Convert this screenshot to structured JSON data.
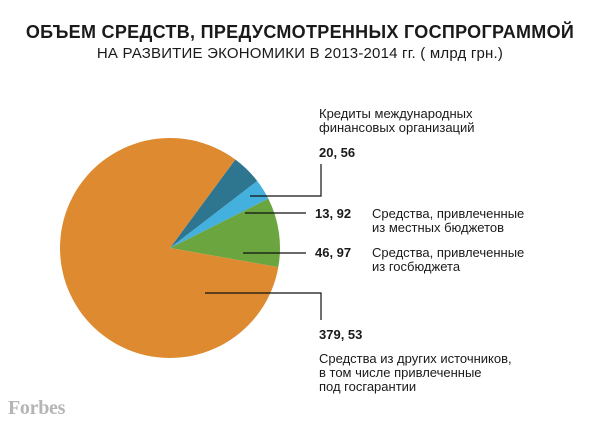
{
  "brand": "Forbes",
  "chart_data": {
    "type": "pie",
    "title": "ОБЪЕМ СРЕДСТВ, ПРЕДУСМОТРЕННЫХ ГОСПРОГРАММОЙ",
    "subtitle": "НА РАЗВИТИЕ ЭКОНОМИКИ В 2013-2014  гг. ( млрд грн.)",
    "slices": [
      {
        "value": 20.56,
        "value_label": "20, 56",
        "label_lines": [
          "Кредиты международных",
          "финансовых организаций"
        ],
        "color": "#2e7590"
      },
      {
        "value": 13.92,
        "value_label": "13, 92",
        "label_lines": [
          "Средства, привлеченные",
          "из местных бюджетов"
        ],
        "color": "#43b0de"
      },
      {
        "value": 46.97,
        "value_label": "46, 97",
        "label_lines": [
          "Средства, привлеченные",
          "из госбюджета"
        ],
        "color": "#6ba540"
      },
      {
        "value": 379.53,
        "value_label": "379, 53",
        "label_lines": [
          "Средства из других источников,",
          "в том числе привлеченные",
          "под госгарантии"
        ],
        "color": "#dd8a30"
      }
    ]
  }
}
